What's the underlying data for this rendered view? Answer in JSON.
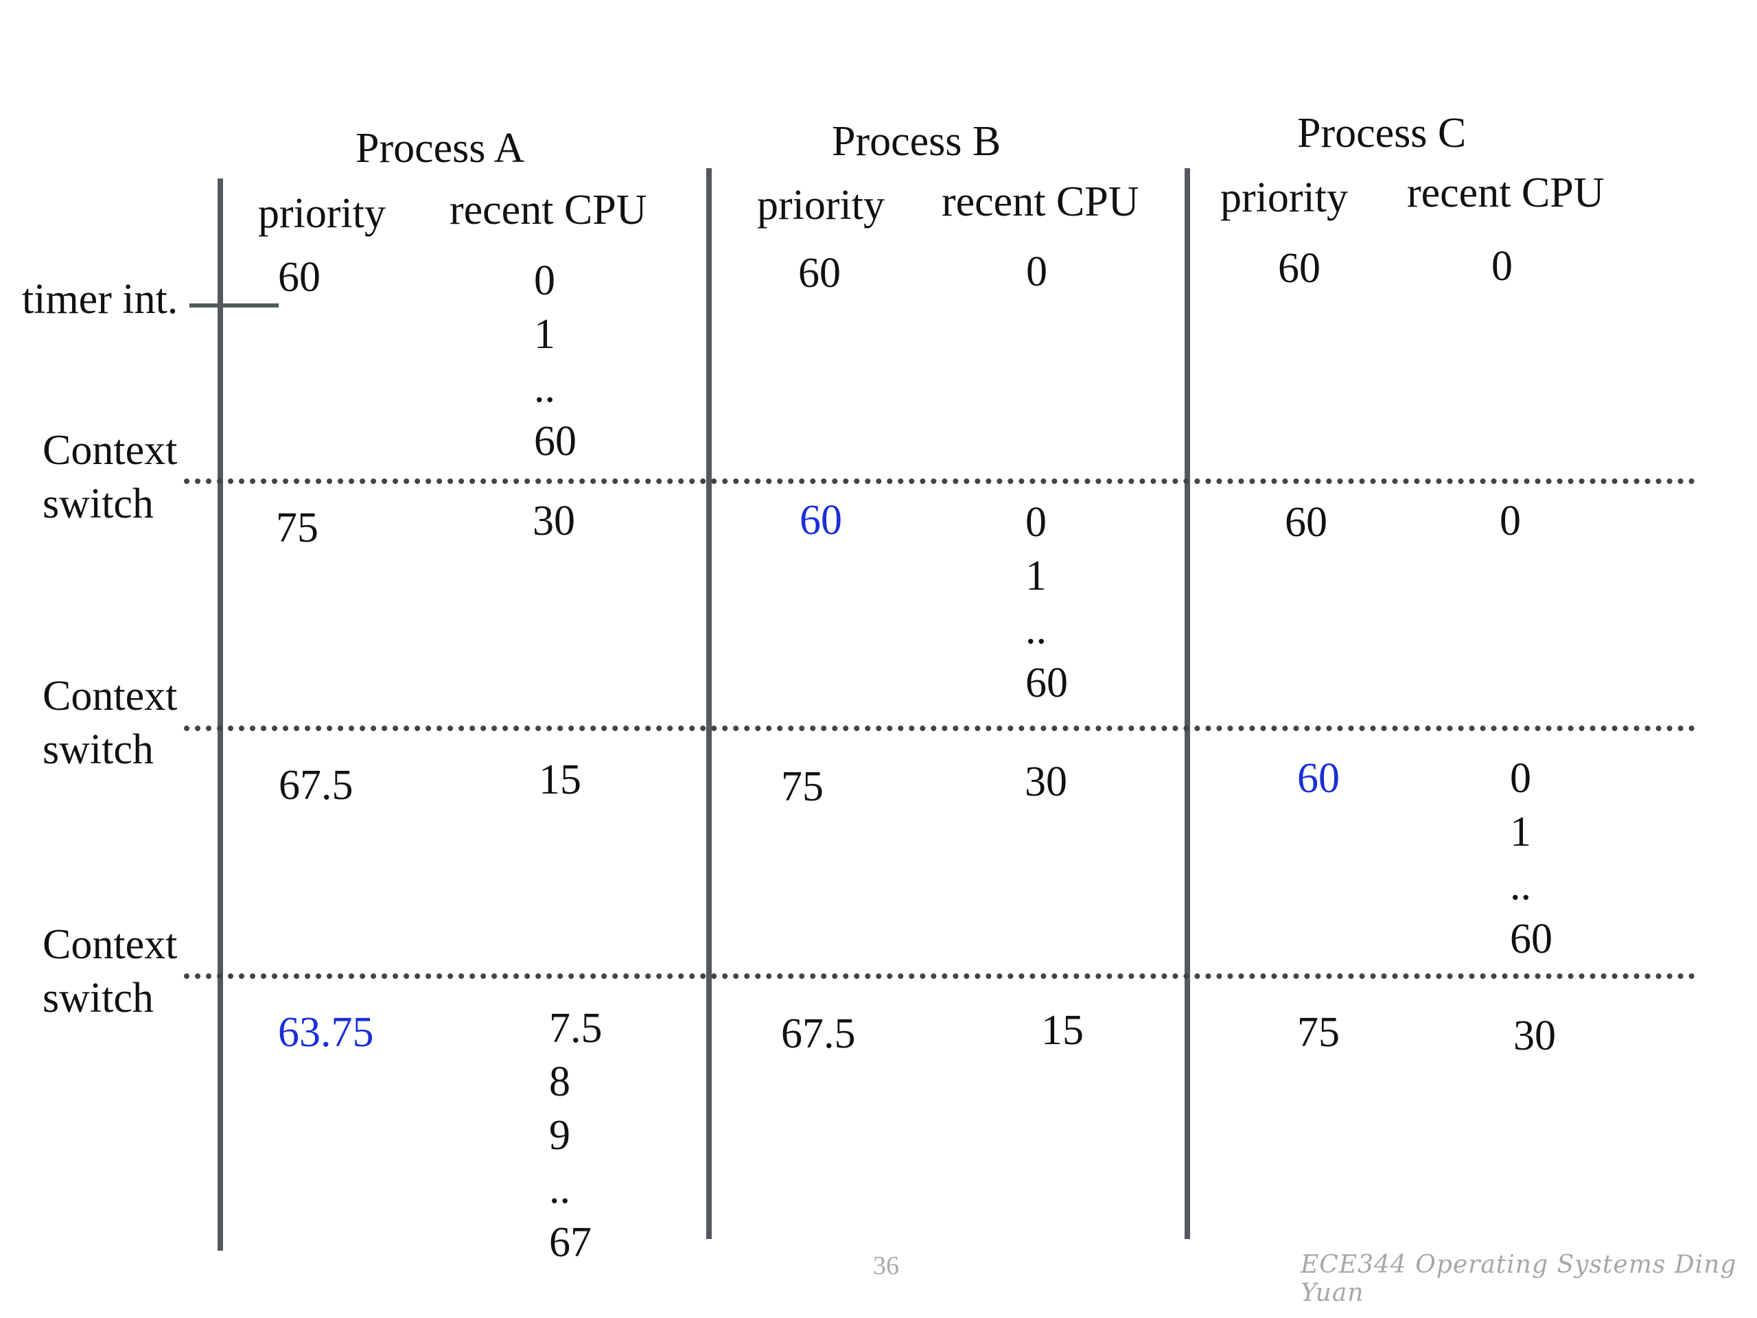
{
  "headers": {
    "process_a": "Process A",
    "process_b": "Process B",
    "process_c": "Process C",
    "priority": "priority",
    "recent_cpu": "recent CPU"
  },
  "row_labels": {
    "timer_int": "timer int.",
    "context": "Context",
    "switch": "switch"
  },
  "rows": [
    {
      "a_priority": "60",
      "a_cpu": [
        "0",
        "1",
        "..",
        "60"
      ],
      "b_priority": "60",
      "b_cpu": [
        "0"
      ],
      "c_priority": "60",
      "c_cpu": [
        "0"
      ]
    },
    {
      "a_priority": "75",
      "a_cpu": [
        "30"
      ],
      "b_priority": "60",
      "b_cpu": [
        "0",
        "1",
        "..",
        "60"
      ],
      "c_priority": "60",
      "c_cpu": [
        "0"
      ]
    },
    {
      "a_priority": "67.5",
      "a_cpu": [
        "15"
      ],
      "b_priority": "75",
      "b_cpu": [
        "30"
      ],
      "c_priority": "60",
      "c_cpu": [
        "0",
        "1",
        "..",
        "60"
      ]
    },
    {
      "a_priority": "63.75",
      "a_cpu": [
        "7.5",
        "8",
        "9",
        "..",
        "67"
      ],
      "b_priority": "67.5",
      "b_cpu": [
        "15"
      ],
      "c_priority": "75",
      "c_cpu": [
        "30"
      ]
    }
  ],
  "highlight_color": "#1a2fd6",
  "page_number": "36",
  "footer": "ECE344 Operating Systems Ding Yuan"
}
